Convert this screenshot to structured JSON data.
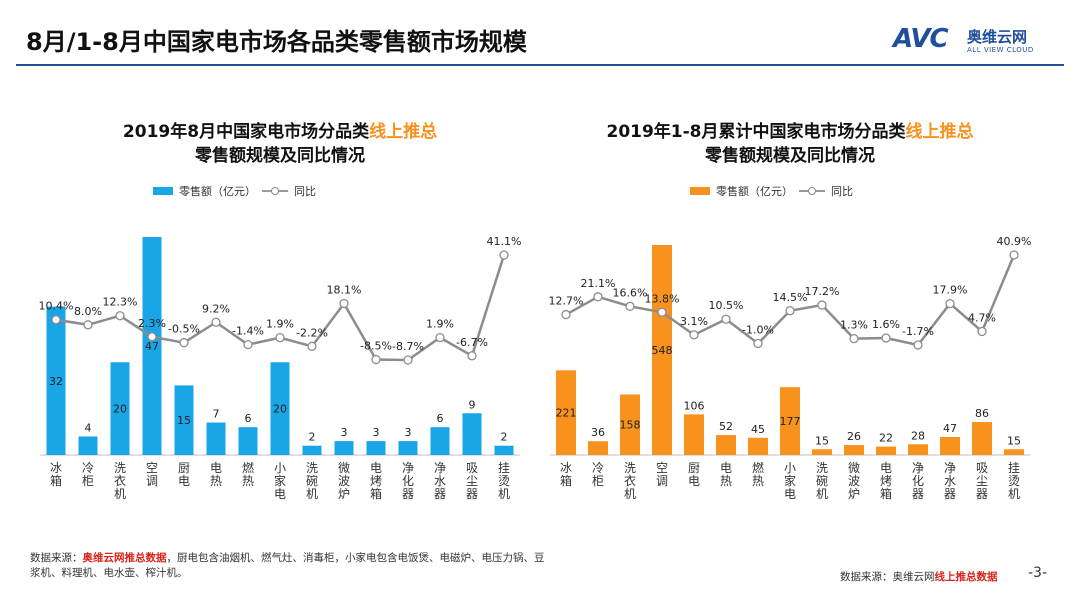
{
  "page": {
    "title": "8月/1-8月中国家电市场各品类零售额市场规模",
    "logo_mark": "AVC",
    "logo_cn": "奥维云网",
    "logo_en": "ALL VIEW CLOUD",
    "footnote_prefix": "数据来源：",
    "footnote_source": "奥维云网推总数据",
    "footnote_rest": "，厨电包含油烟机、燃气灶、消毒柜，小家电包含电饭煲、电磁炉、电压力锅、豆浆机、料理机、电水壶、榨汁机。",
    "source_prefix": "数据来源：奥维云网",
    "source_highlight": "线上推总数据",
    "page_number": "-3-"
  },
  "colors": {
    "bar1": "#1aa6e6",
    "bar2": "#f7921e",
    "line": "#8c8c8c",
    "accent": "#f7921e"
  },
  "chart_data": [
    {
      "type": "bar+line",
      "title_main": "2019年8月中国家电市场分品类",
      "title_highlight": "线上推总",
      "title_line2": "零售额规模及同比情况",
      "legend_bar": "零售额（亿元）",
      "legend_line": "同比",
      "categories": [
        "冰箱",
        "冷柜",
        "洗衣机",
        "空调",
        "厨电",
        "电热",
        "燃热",
        "小家电",
        "洗碗机",
        "微波炉",
        "电烤箱",
        "净化器",
        "净水器",
        "吸尘器",
        "挂烫机"
      ],
      "values": [
        32,
        4,
        20,
        47,
        15,
        7,
        6,
        20,
        2,
        3,
        3,
        3,
        6,
        9,
        2
      ],
      "yoy": [
        10.4,
        8.0,
        12.3,
        2.3,
        -0.5,
        9.2,
        -1.4,
        1.9,
        -2.2,
        18.1,
        -8.5,
        -8.7,
        1.9,
        -6.7,
        41.1
      ],
      "yoy_labels": [
        "10.4%",
        "8.0%",
        "12.3%",
        "2.3%",
        "-0.5%",
        "9.2%",
        "-1.4%",
        "1.9%",
        "-2.2%",
        "18.1%",
        "-8.5%",
        "-8.7%",
        "1.9%",
        "-6.7%",
        "41.1%"
      ]
    },
    {
      "type": "bar+line",
      "title_main": "2019年1-8月累计中国家电市场分品类",
      "title_highlight": "线上推总",
      "title_line2": "零售额规模及同比情况",
      "legend_bar": "零售额（亿元）",
      "legend_line": "同比",
      "categories": [
        "冰箱",
        "冷柜",
        "洗衣机",
        "空调",
        "厨电",
        "电热",
        "燃热",
        "小家电",
        "洗碗机",
        "微波炉",
        "电烤箱",
        "净化器",
        "净水器",
        "吸尘器",
        "挂烫机"
      ],
      "values": [
        221,
        36,
        158,
        548,
        106,
        52,
        45,
        177,
        15,
        26,
        22,
        28,
        47,
        86,
        15
      ],
      "yoy": [
        12.7,
        21.1,
        16.6,
        13.8,
        3.1,
        10.5,
        -1.0,
        14.5,
        17.2,
        1.3,
        1.6,
        -1.7,
        17.9,
        4.7,
        40.9
      ],
      "yoy_labels": [
        "12.7%",
        "21.1%",
        "16.6%",
        "13.8%",
        "3.1%",
        "10.5%",
        "-1.0%",
        "14.5%",
        "17.2%",
        "1.3%",
        "1.6%",
        "-1.7%",
        "17.9%",
        "4.7%",
        "40.9%"
      ]
    }
  ]
}
